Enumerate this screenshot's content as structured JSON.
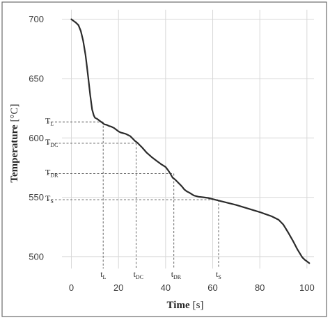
{
  "chart_data": {
    "type": "line",
    "xlabel": "Time",
    "xunit": "[s]",
    "ylabel": "Temperature",
    "yunit": "[°C]",
    "xlim": [
      -4,
      103
    ],
    "ylim": [
      490,
      708
    ],
    "xticks": [
      0,
      20,
      40,
      60,
      80,
      100
    ],
    "yticks": [
      500,
      550,
      600,
      650,
      700
    ],
    "grid": true,
    "series": [
      {
        "x": [
          0,
          1,
          2,
          3,
          4,
          5,
          6,
          6.6,
          7.2,
          8,
          8.8,
          9.5,
          10,
          11,
          12,
          13,
          14,
          15,
          16,
          17,
          18,
          19,
          20,
          21,
          22,
          23,
          24,
          25,
          26,
          27,
          28,
          29,
          30,
          32,
          34,
          36,
          38,
          40,
          41,
          42,
          43,
          44,
          45,
          46,
          47,
          48,
          49,
          50,
          52,
          54,
          56,
          58,
          60,
          62,
          65,
          70,
          75,
          80,
          85,
          88,
          90,
          92,
          94,
          96,
          98,
          99,
          100,
          101
        ],
        "y": [
          700,
          698.5,
          697,
          695,
          690,
          682,
          670,
          660,
          650,
          636,
          624,
          619,
          617,
          616,
          614.5,
          613,
          611.5,
          611,
          610,
          609.5,
          608.5,
          607,
          605.5,
          604.5,
          604,
          603.5,
          602.5,
          601.5,
          599.5,
          597.5,
          596,
          594,
          592,
          587.5,
          584,
          581,
          578,
          575.5,
          573,
          570,
          566.5,
          565,
          563,
          561,
          559,
          556.5,
          555,
          554,
          551.5,
          550.5,
          550,
          549.5,
          548.5,
          547.5,
          546,
          543.5,
          540.5,
          537.5,
          534,
          531,
          527,
          520.5,
          513.5,
          506,
          499.5,
          497.5,
          496,
          494.5
        ]
      }
    ],
    "annotations": [
      {
        "x_label": "t",
        "x_sub": "L",
        "y_label": "T",
        "y_sub": "L",
        "x": 13.5,
        "y": 613.5
      },
      {
        "x_label": "t",
        "x_sub": "DC",
        "y_label": "T",
        "y_sub": "DC",
        "x": 27.5,
        "y": 595.5
      },
      {
        "x_label": "t",
        "x_sub": "DR",
        "y_label": "T",
        "y_sub": "DR",
        "x": 43.5,
        "y": 570
      },
      {
        "x_label": "t",
        "x_sub": "S",
        "y_label": "T",
        "y_sub": "S",
        "x": 62.5,
        "y": 548
      }
    ]
  }
}
